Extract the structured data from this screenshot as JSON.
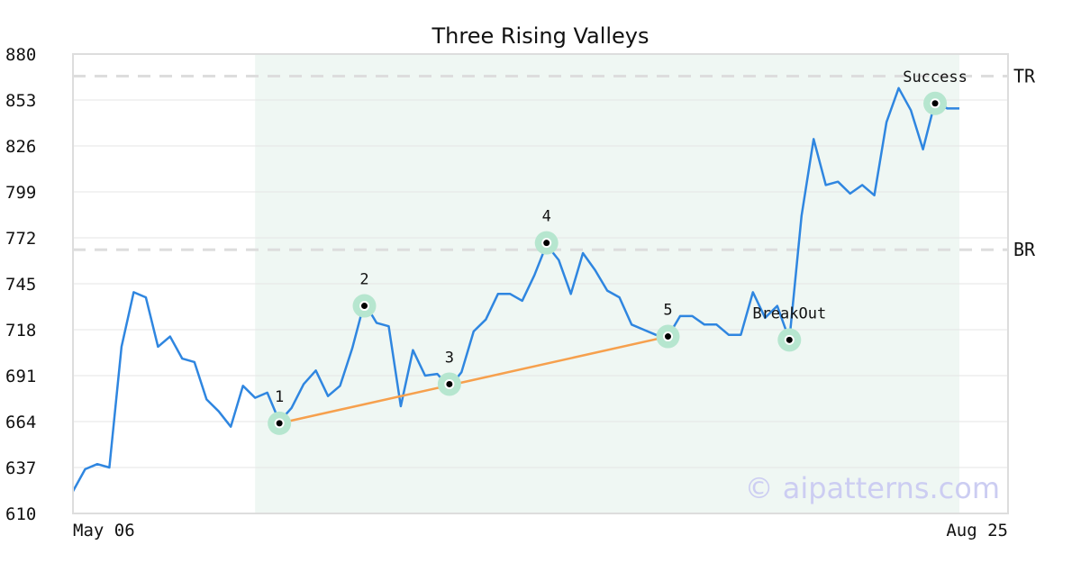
{
  "chart_data": {
    "type": "line",
    "title": "Three Rising Valleys",
    "xlabel": "",
    "ylabel": "",
    "x_tick_labels": [
      "May 06",
      "Aug 25"
    ],
    "y_ticks": [
      610,
      637,
      664,
      691,
      718,
      745,
      772,
      799,
      826,
      853,
      880
    ],
    "ylim": [
      610,
      880
    ],
    "grid": "horizontal",
    "colors": {
      "price": "#2f86e0",
      "trendline": "#f6a04d",
      "highlight_band": "#eff7f3",
      "marker_halo": "#b6e6cf",
      "reference_line": "#dddddd",
      "watermark": "#cccdf2"
    },
    "series": [
      {
        "values": [
          623,
          636,
          639,
          637,
          708,
          740,
          737,
          708,
          714,
          701,
          699,
          677,
          670,
          661,
          685,
          678,
          681,
          664,
          672,
          686,
          694,
          679,
          685,
          707,
          734,
          722,
          720,
          673,
          706,
          691,
          692,
          684,
          693,
          717,
          724,
          739,
          739,
          735,
          750,
          768,
          759,
          739,
          763,
          753,
          741,
          737,
          721,
          718,
          715,
          714,
          726,
          726,
          721,
          721,
          715,
          715,
          740,
          725,
          732,
          712,
          785,
          830,
          803,
          805,
          798,
          803,
          797,
          840,
          860,
          847,
          824,
          852,
          848,
          848
        ]
      }
    ],
    "highlight_band": {
      "x_start": 15,
      "x_end": 73
    },
    "reference_lines": [
      {
        "name": "TR",
        "value": 867
      },
      {
        "name": "BR",
        "value": 765
      }
    ],
    "trendline": {
      "from": {
        "x": 17,
        "y": 663
      },
      "to": {
        "x": 49,
        "y": 714
      }
    },
    "points": [
      {
        "label": "1",
        "x": 17,
        "y": 663
      },
      {
        "label": "2",
        "x": 24,
        "y": 732
      },
      {
        "label": "3",
        "x": 31,
        "y": 686
      },
      {
        "label": "4",
        "x": 39,
        "y": 769
      },
      {
        "label": "5",
        "x": 49,
        "y": 714
      },
      {
        "label": "BreakOut",
        "x": 59,
        "y": 712
      },
      {
        "label": "Success",
        "x": 71,
        "y": 851
      }
    ],
    "watermark": "© aipatterns.com"
  }
}
